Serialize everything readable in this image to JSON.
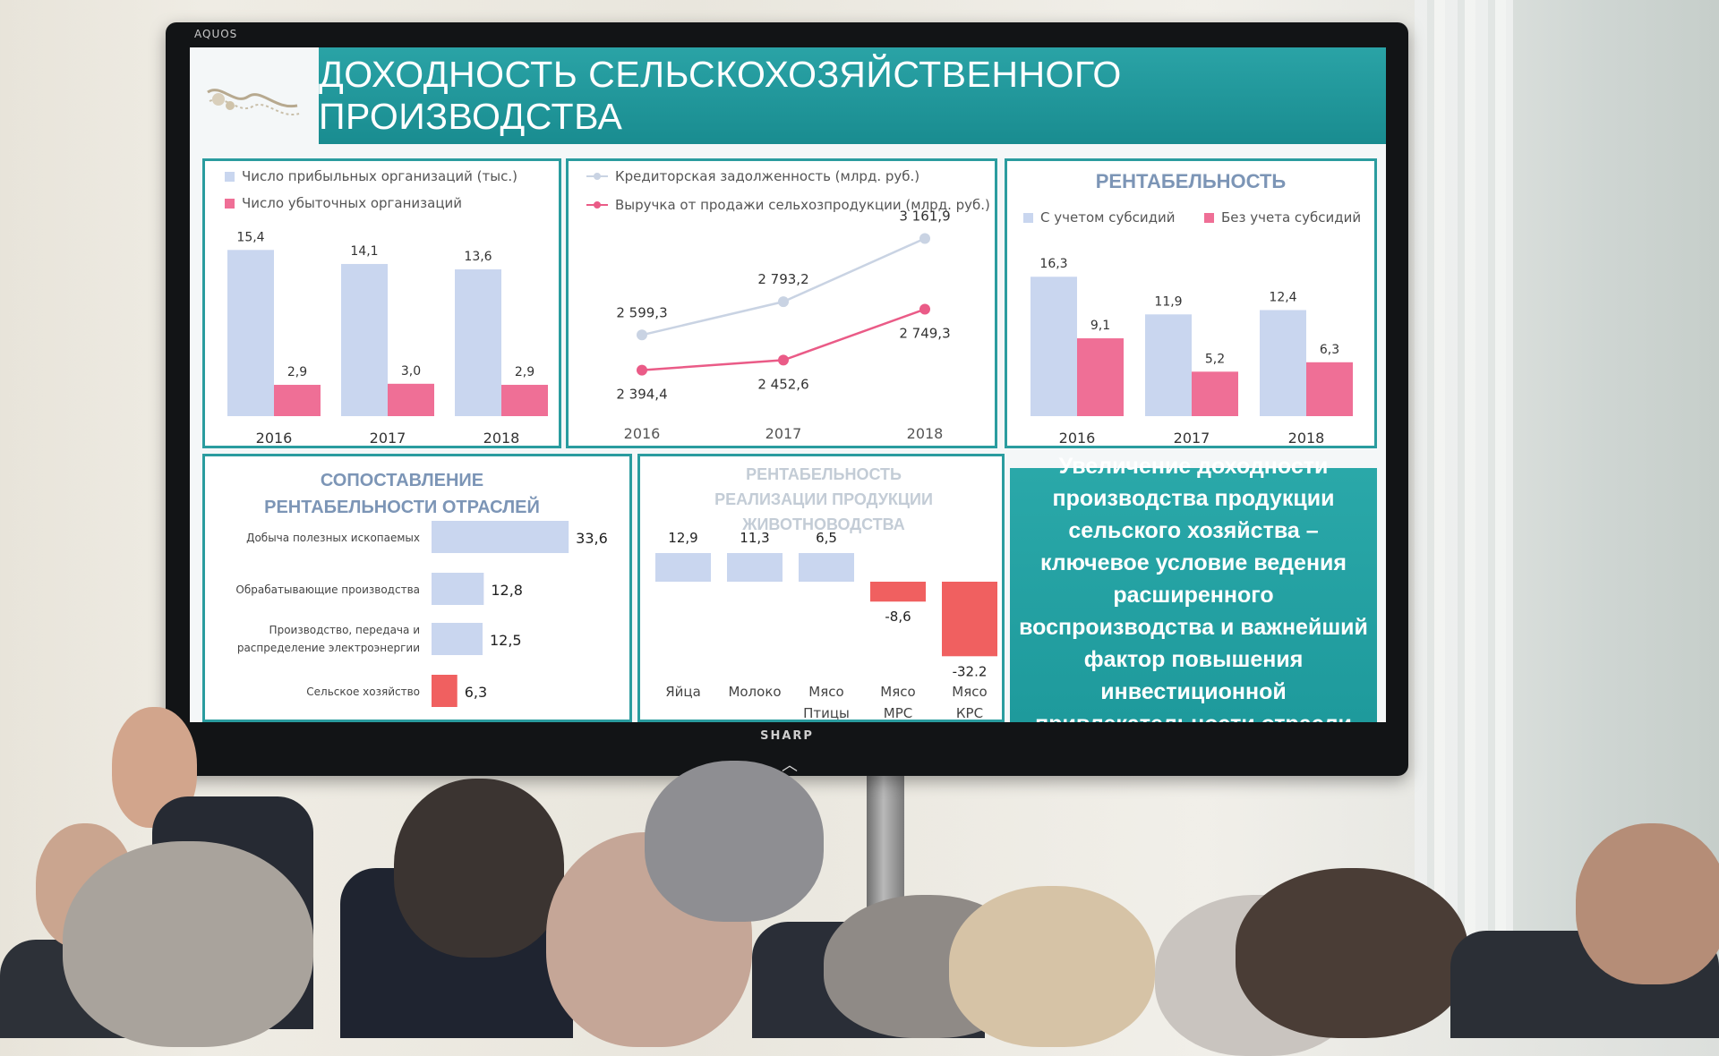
{
  "tv": {
    "brand_top": "AQUOS",
    "brand_bottom": "SHARP",
    "chevron": "︿"
  },
  "slide": {
    "title": "ДОХОДНОСТЬ СЕЛЬСКОХОЗЯЙСТВЕННОГО ПРОИЗВОДСТВА",
    "callout": "Увеличение доходности производства продукции сельского хозяйства – ключевое условие ведения расширенного воспроизводства и важнейший фактор повышения инвестиционной привлекательности отрасли"
  },
  "colors": {
    "teal": "#1e9a9c",
    "bar_blue": "#c9d6ef",
    "bar_pink": "#ef6f96",
    "bar_red": "#f06060",
    "line_grey": "#c9d3e3",
    "line_pink": "#ea5b87"
  },
  "chart_data": [
    {
      "type": "bar",
      "categories": [
        "2016",
        "2017",
        "2018"
      ],
      "series": [
        {
          "name": "Число прибыльных организаций (тыс.)",
          "values": [
            15.4,
            14.1,
            13.6
          ],
          "labels": [
            "15,4",
            "14,1",
            "13,6"
          ]
        },
        {
          "name": "Число убыточных организаций",
          "values": [
            2.9,
            3.0,
            2.9
          ],
          "labels": [
            "2,9",
            "3,0",
            "2,9"
          ]
        }
      ],
      "legend": "top-left",
      "ylim": [
        0,
        17
      ]
    },
    {
      "type": "line",
      "x": [
        "2016",
        "2017",
        "2018"
      ],
      "series": [
        {
          "name": "Кредиторская задолженность (млрд. руб.)",
          "values": [
            2599.3,
            2793.2,
            3161.9
          ],
          "labels": [
            "2 599,3",
            "2 793,2",
            "3 161,9"
          ]
        },
        {
          "name": "Выручка от продажи сельхозпродукции (млрд. руб.)",
          "values": [
            2394.4,
            2452.6,
            2749.3
          ],
          "labels": [
            "2 394,4",
            "2 452,6",
            "2 749,3"
          ]
        }
      ],
      "legend": "top-left",
      "ylim": [
        2100,
        3300
      ]
    },
    {
      "type": "bar",
      "title": "РЕНТАБЕЛЬНОСТЬ",
      "categories": [
        "2016",
        "2017",
        "2018"
      ],
      "series": [
        {
          "name": "С учетом субсидий",
          "values": [
            16.3,
            11.9,
            12.4
          ],
          "labels": [
            "16,3",
            "11,9",
            "12,4"
          ]
        },
        {
          "name": "Без учета субсидий",
          "values": [
            9.1,
            5.2,
            6.3
          ],
          "labels": [
            "9,1",
            "5,2",
            "6,3"
          ]
        }
      ],
      "legend": "top",
      "ylim": [
        0,
        18
      ]
    },
    {
      "type": "bar",
      "orientation": "horizontal",
      "title": "СОПОСТАВЛЕНИЕ РЕНТАБЕЛЬНОСТИ ОТРАСЛЕЙ",
      "categories": [
        "Добыча полезных ископаемых",
        "Обрабатывающие производства",
        "Производство, передача и распределение электроэнергии",
        "Сельское хозяйство"
      ],
      "values": [
        33.6,
        12.8,
        12.5,
        6.3
      ],
      "labels": [
        "33,6",
        "12,8",
        "12,5",
        "6,3"
      ],
      "xlim": [
        0,
        34
      ]
    },
    {
      "type": "bar",
      "title": "РЕНТАБЕЛЬНОСТЬ РЕАЛИЗАЦИИ ПРОДУКЦИИ ЖИВОТНОВОДСТВА",
      "categories": [
        "Яйца",
        "Молоко",
        "Мясо Птицы",
        "Мясо МРС",
        "Мясо КРС"
      ],
      "values": [
        12.9,
        11.3,
        6.5,
        -8.6,
        -32.2
      ],
      "labels": [
        "12,9",
        "11,3",
        "6,5",
        "-8,6",
        "-32.2"
      ],
      "ylim": [
        -33,
        13
      ]
    }
  ]
}
